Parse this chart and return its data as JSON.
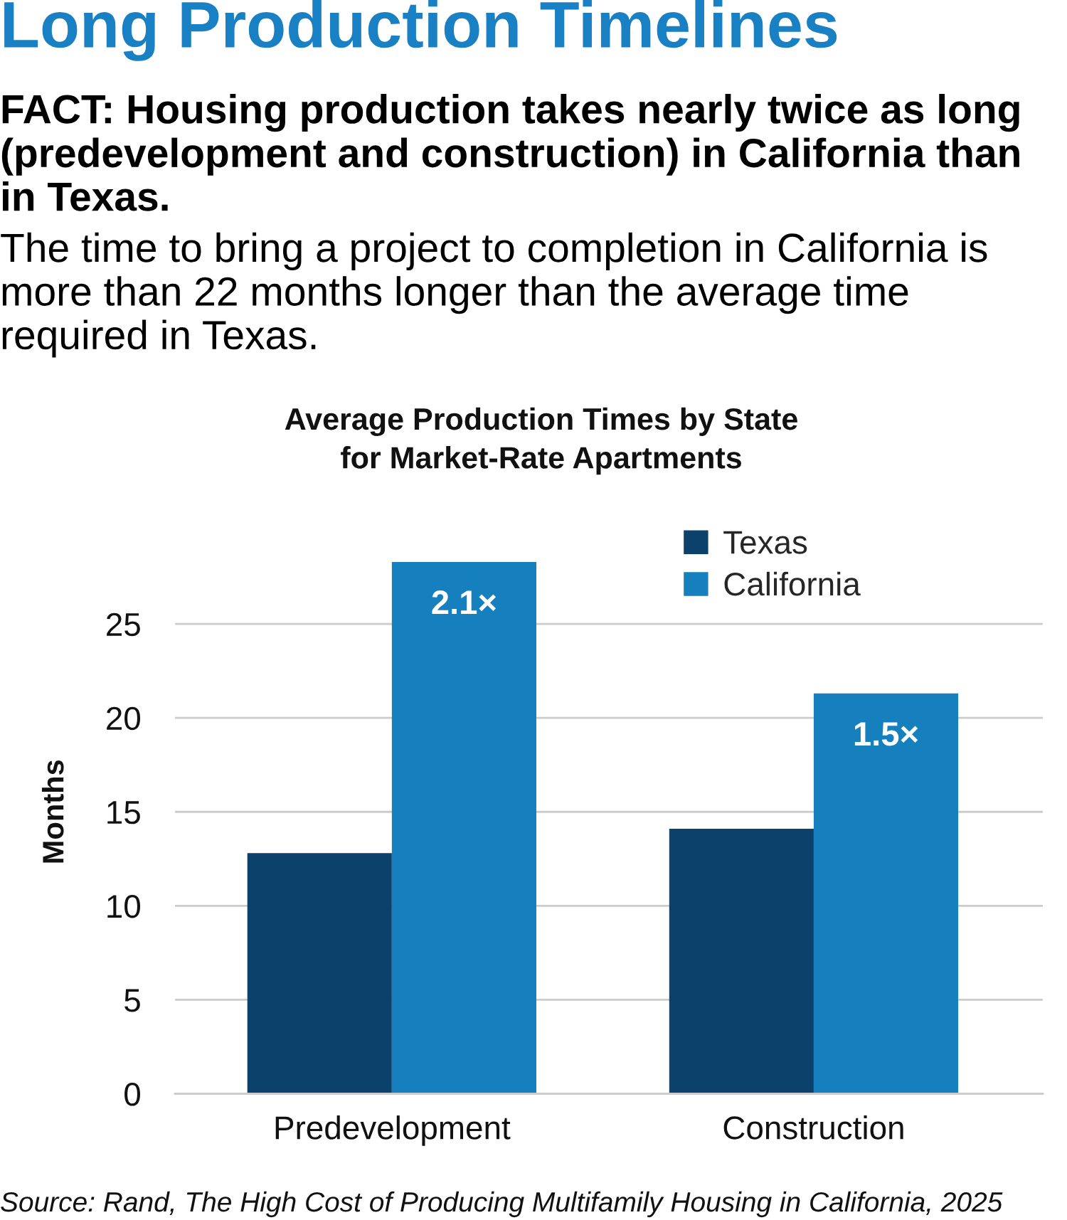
{
  "chart_data": {
    "type": "bar",
    "title": "Long Production Timelines",
    "subtitle": "FACT: Housing production takes nearly twice as long (predevelopment and construction) in California than in Texas.",
    "annotations": [
      "The time to bring a project to completion in California is more than 22 months longer than the average time required in Texas.",
      "Average Production Times by State\nfor Market-Rate Apartments",
      "Source: Rand, The High Cost of Producing Multifamily Housing in California, 2025",
      {
        "text": "2.1×",
        "x": "Predevelopment",
        "y": 28.3
      },
      {
        "text": "1.5×",
        "x": "Construction",
        "y": 21.3
      }
    ],
    "ylabel": "Months",
    "categories": [
      "Predevelopment",
      "Construction"
    ],
    "series": [
      {
        "name": "Texas",
        "color": "#0c416b",
        "values": [
          12.8,
          14.1
        ]
      },
      {
        "name": "California",
        "color": "#167fbd",
        "values": [
          28.3,
          21.3
        ]
      }
    ],
    "ylim": [
      0,
      30
    ],
    "yticks": [
      0,
      5,
      10,
      15,
      20,
      25
    ],
    "grid": "y",
    "legend": "top right"
  }
}
